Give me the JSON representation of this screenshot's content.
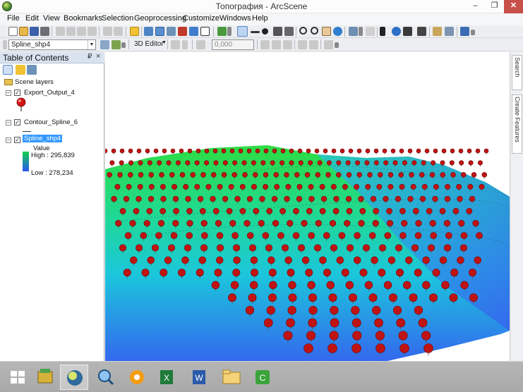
{
  "window": {
    "title": "Топография - ArcScene",
    "min_glyph": "–",
    "max_glyph": "❐",
    "close_glyph": "✕"
  },
  "menu": {
    "items": [
      "File",
      "Edit",
      "View",
      "Bookmarks",
      "Selection",
      "Geoprocessing",
      "Customize",
      "Windows",
      "Help"
    ]
  },
  "toolbar2": {
    "layer_combo_value": "Spline_shp4",
    "editor_label": "3D Editor",
    "value_field": "0,000"
  },
  "toc": {
    "title": "Table of Contents",
    "pin_glyph": "₽",
    "close_glyph": "×",
    "root_label": "Scene layers",
    "layers": [
      {
        "name": "Export_Output_4",
        "checked": true
      },
      {
        "name": "Contour_Spline_6",
        "checked": true
      },
      {
        "name": "Spline_shp4",
        "checked": true
      }
    ],
    "legend": {
      "field_label": "Value",
      "high_label": "High : 295,839",
      "low_label": "Low : 278,234"
    }
  },
  "right_dock": {
    "tabs": [
      "Search",
      "Create Features"
    ]
  },
  "colors": {
    "pin_red": "#c01414",
    "surface_high": "#2ecc40",
    "surface_mid": "#1ec8d8",
    "surface_low": "#2a6cf0",
    "legend_high": "#14d24a",
    "legend_low": "#2a55f2"
  },
  "taskbar": {
    "apps": [
      "start-button",
      "file-manager-icon",
      "arcscene-app-icon",
      "search-app-icon",
      "browser-icon",
      "excel-icon",
      "word-icon",
      "explorer-icon",
      "camtasia-icon"
    ]
  }
}
